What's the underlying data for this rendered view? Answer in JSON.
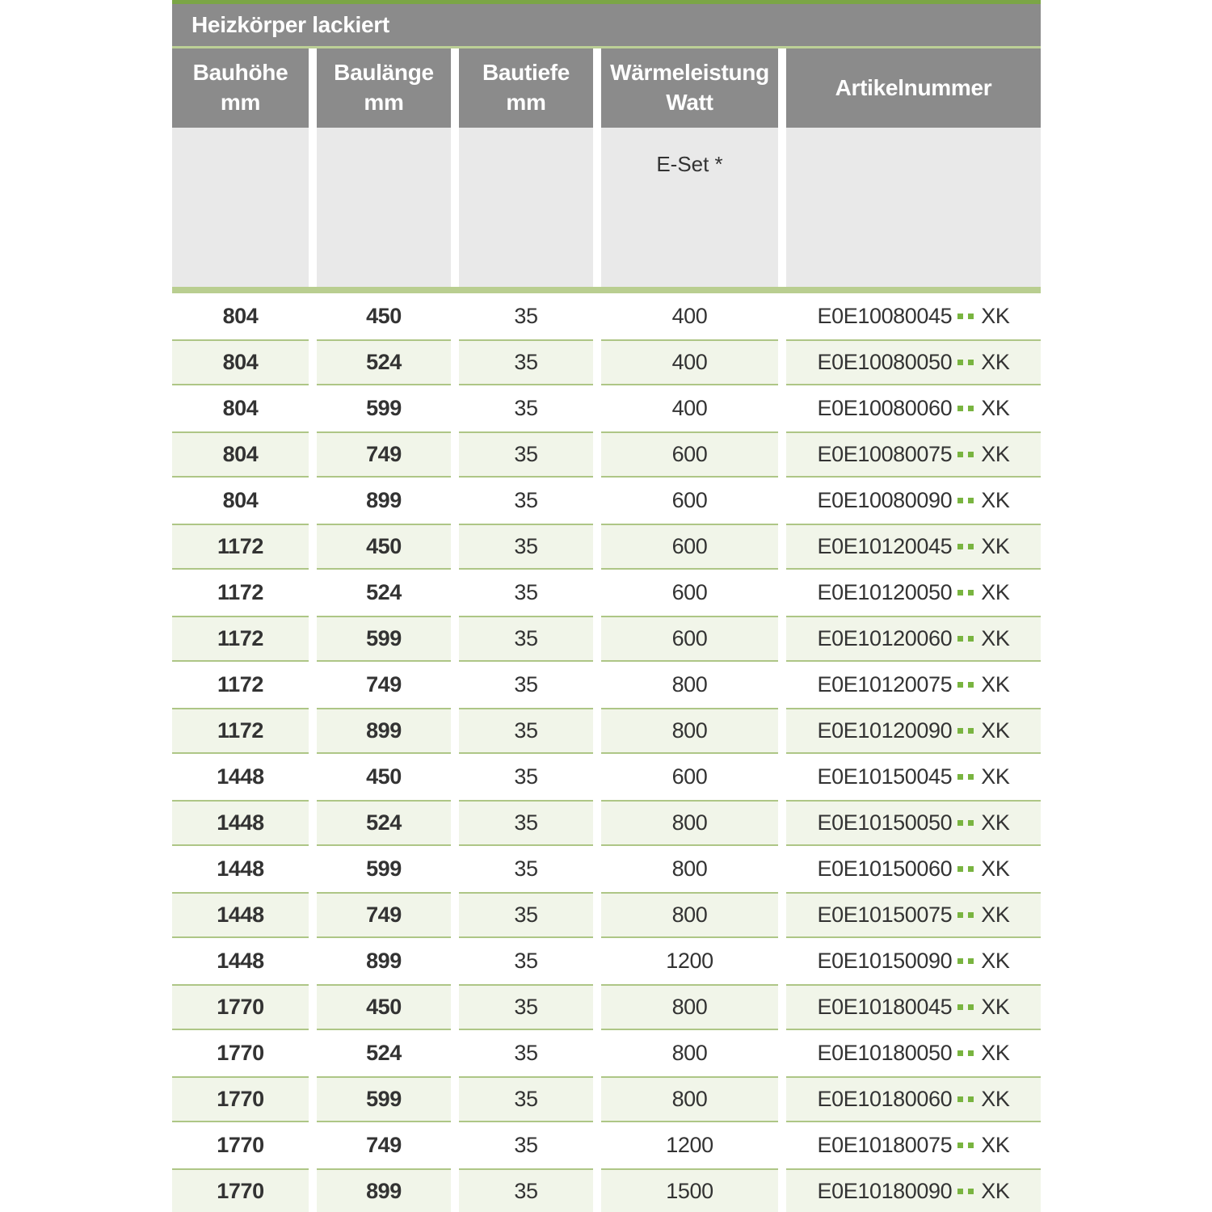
{
  "colors": {
    "accent_green": "#79b440",
    "green_top_line": "#7ba546",
    "green_divider_bar": "#b9ce90",
    "green_row_background": "#f1f5e9",
    "green_row_border": "#aec686",
    "header_gray": "#8b8b8b",
    "subheader_gray": "#e9e9e9",
    "text_dark": "#333333"
  },
  "table": {
    "title": "Heizkörper lackiert",
    "columns": [
      {
        "line1": "Bauhöhe",
        "line2": "mm"
      },
      {
        "line1": "Baulänge",
        "line2": "mm"
      },
      {
        "line1": "Bautiefe",
        "line2": "mm"
      },
      {
        "line1": "Wärmeleistung",
        "line2": "Watt"
      },
      {
        "line1": "Artikelnummer",
        "line2": ""
      }
    ],
    "subheader": {
      "e_set_label": "E-Set *"
    },
    "rows": [
      {
        "bauhoehe": "804",
        "baulaenge": "450",
        "bautiefe": "35",
        "watt": "400",
        "artikel_prefix": "E0E10080045",
        "artikel_suffix": "XK"
      },
      {
        "bauhoehe": "804",
        "baulaenge": "524",
        "bautiefe": "35",
        "watt": "400",
        "artikel_prefix": "E0E10080050",
        "artikel_suffix": "XK"
      },
      {
        "bauhoehe": "804",
        "baulaenge": "599",
        "bautiefe": "35",
        "watt": "400",
        "artikel_prefix": "E0E10080060",
        "artikel_suffix": "XK"
      },
      {
        "bauhoehe": "804",
        "baulaenge": "749",
        "bautiefe": "35",
        "watt": "600",
        "artikel_prefix": "E0E10080075",
        "artikel_suffix": "XK"
      },
      {
        "bauhoehe": "804",
        "baulaenge": "899",
        "bautiefe": "35",
        "watt": "600",
        "artikel_prefix": "E0E10080090",
        "artikel_suffix": "XK"
      },
      {
        "bauhoehe": "1172",
        "baulaenge": "450",
        "bautiefe": "35",
        "watt": "600",
        "artikel_prefix": "E0E10120045",
        "artikel_suffix": "XK"
      },
      {
        "bauhoehe": "1172",
        "baulaenge": "524",
        "bautiefe": "35",
        "watt": "600",
        "artikel_prefix": "E0E10120050",
        "artikel_suffix": "XK"
      },
      {
        "bauhoehe": "1172",
        "baulaenge": "599",
        "bautiefe": "35",
        "watt": "600",
        "artikel_prefix": "E0E10120060",
        "artikel_suffix": "XK"
      },
      {
        "bauhoehe": "1172",
        "baulaenge": "749",
        "bautiefe": "35",
        "watt": "800",
        "artikel_prefix": "E0E10120075",
        "artikel_suffix": "XK"
      },
      {
        "bauhoehe": "1172",
        "baulaenge": "899",
        "bautiefe": "35",
        "watt": "800",
        "artikel_prefix": "E0E10120090",
        "artikel_suffix": "XK"
      },
      {
        "bauhoehe": "1448",
        "baulaenge": "450",
        "bautiefe": "35",
        "watt": "600",
        "artikel_prefix": "E0E10150045",
        "artikel_suffix": "XK"
      },
      {
        "bauhoehe": "1448",
        "baulaenge": "524",
        "bautiefe": "35",
        "watt": "800",
        "artikel_prefix": "E0E10150050",
        "artikel_suffix": "XK"
      },
      {
        "bauhoehe": "1448",
        "baulaenge": "599",
        "bautiefe": "35",
        "watt": "800",
        "artikel_prefix": "E0E10150060",
        "artikel_suffix": "XK"
      },
      {
        "bauhoehe": "1448",
        "baulaenge": "749",
        "bautiefe": "35",
        "watt": "800",
        "artikel_prefix": "E0E10150075",
        "artikel_suffix": "XK"
      },
      {
        "bauhoehe": "1448",
        "baulaenge": "899",
        "bautiefe": "35",
        "watt": "1200",
        "artikel_prefix": "E0E10150090",
        "artikel_suffix": "XK"
      },
      {
        "bauhoehe": "1770",
        "baulaenge": "450",
        "bautiefe": "35",
        "watt": "800",
        "artikel_prefix": "E0E10180045",
        "artikel_suffix": "XK"
      },
      {
        "bauhoehe": "1770",
        "baulaenge": "524",
        "bautiefe": "35",
        "watt": "800",
        "artikel_prefix": "E0E10180050",
        "artikel_suffix": "XK"
      },
      {
        "bauhoehe": "1770",
        "baulaenge": "599",
        "bautiefe": "35",
        "watt": "800",
        "artikel_prefix": "E0E10180060",
        "artikel_suffix": "XK"
      },
      {
        "bauhoehe": "1770",
        "baulaenge": "749",
        "bautiefe": "35",
        "watt": "1200",
        "artikel_prefix": "E0E10180075",
        "artikel_suffix": "XK"
      },
      {
        "bauhoehe": "1770",
        "baulaenge": "899",
        "bautiefe": "35",
        "watt": "1500",
        "artikel_prefix": "E0E10180090",
        "artikel_suffix": "XK"
      }
    ]
  }
}
